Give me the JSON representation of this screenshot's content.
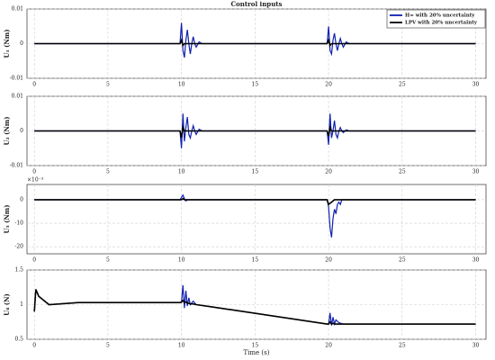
{
  "chart_data": [
    {
      "type": "line",
      "title": "Control inputs",
      "ylabel": "U₁ (Nm)",
      "legend": "upper right",
      "grid": true,
      "xlim": [
        -0.5,
        30.7
      ],
      "xticks": [
        0,
        5,
        10,
        15,
        20,
        25,
        30
      ],
      "ylim": [
        -0.01,
        0.01
      ],
      "yticks": [
        -0.01,
        0,
        0.01
      ],
      "x": [
        0,
        9.9,
        10,
        10.1,
        10.2,
        10.3,
        10.4,
        10.5,
        10.6,
        10.7,
        10.8,
        10.9,
        11,
        11.2,
        11.4,
        11.6,
        12,
        19.9,
        20,
        20.1,
        20.2,
        20.3,
        20.4,
        20.5,
        20.6,
        20.7,
        20.8,
        20.9,
        21,
        21.2,
        21.4,
        21.6,
        22,
        30
      ],
      "series": [
        {
          "name": "H∞ with 20% uncertainty",
          "color": "#1020b0",
          "values": [
            0,
            0,
            0.006,
            -0.002,
            -0.004,
            0.001,
            0.004,
            0,
            -0.003,
            0,
            0.002,
            0,
            -0.001,
            0.0005,
            0,
            0,
            0,
            0,
            0.005,
            -0.002,
            -0.003,
            0.001,
            0.003,
            0,
            -0.002,
            0,
            0.0015,
            0,
            -0.001,
            0.0005,
            0,
            0,
            0,
            0
          ]
        },
        {
          "name": "LPV with 20% uncertainty",
          "color": "#000000",
          "values": [
            0,
            0,
            0.001,
            -0.0005,
            0,
            0,
            0,
            0,
            0,
            0,
            0,
            0,
            0,
            0,
            0,
            0,
            0,
            0,
            0.001,
            -0.0005,
            0,
            0,
            0,
            0,
            0,
            0,
            0,
            0,
            0,
            0,
            0,
            0,
            0,
            0
          ]
        }
      ]
    },
    {
      "type": "line",
      "ylabel": "U₂ (Nm)",
      "grid": true,
      "xlim": [
        -0.5,
        30.7
      ],
      "xticks": [
        0,
        5,
        10,
        15,
        20,
        25,
        30
      ],
      "ylim": [
        -0.01,
        0.01
      ],
      "yticks": [
        -0.01,
        0,
        0.01
      ],
      "x": [
        0,
        9.9,
        10,
        10.1,
        10.2,
        10.3,
        10.4,
        10.5,
        10.6,
        10.7,
        10.8,
        10.9,
        11,
        11.2,
        11.4,
        11.6,
        12,
        19.9,
        20,
        20.1,
        20.2,
        20.3,
        20.4,
        20.5,
        20.6,
        20.7,
        20.8,
        20.9,
        21,
        21.2,
        21.4,
        21.6,
        22,
        30
      ],
      "series": [
        {
          "color": "#1020b0",
          "values": [
            0,
            0,
            -0.005,
            0.005,
            -0.003,
            0.001,
            0.004,
            -0.001,
            -0.002,
            0,
            0.0015,
            0,
            -0.001,
            0.0005,
            0,
            0,
            0,
            0,
            -0.004,
            0.005,
            -0.002,
            0,
            0.003,
            -0.001,
            -0.002,
            0,
            0.001,
            0,
            -0.0005,
            0.0003,
            0,
            0,
            0,
            0
          ]
        },
        {
          "color": "#000000",
          "values": [
            0,
            0,
            -0.002,
            0.001,
            0,
            0,
            0,
            0,
            0,
            0,
            0,
            0,
            0,
            0,
            0,
            0,
            0,
            0,
            -0.0015,
            0.001,
            0,
            0,
            0,
            0,
            0,
            0,
            0,
            0,
            0,
            0,
            0,
            0,
            0,
            0
          ]
        }
      ]
    },
    {
      "type": "line",
      "ylabel": "U₃ (Nm)",
      "multiplier": "×10⁻³",
      "grid": true,
      "xlim": [
        -0.5,
        30.7
      ],
      "xticks": [
        0,
        5,
        10,
        15,
        20,
        25,
        30
      ],
      "ylim": [
        -23,
        6.5
      ],
      "yticks": [
        -20,
        -10,
        0
      ],
      "x": [
        0,
        9.9,
        10,
        10.1,
        10.2,
        10.3,
        10.4,
        10.5,
        10.6,
        10.7,
        10.8,
        10.9,
        11,
        11.2,
        11.4,
        11.6,
        12,
        19.9,
        20,
        20.1,
        20.2,
        20.3,
        20.4,
        20.5,
        20.6,
        20.7,
        20.8,
        20.9,
        21,
        21.2,
        21.4,
        21.6,
        22,
        30
      ],
      "series": [
        {
          "color": "#1020b0",
          "values": [
            0,
            0,
            1,
            2,
            0.5,
            -0.5,
            0,
            0,
            0,
            0,
            0,
            0,
            0,
            0,
            0,
            0,
            0,
            0,
            -3,
            -12,
            -16,
            -8,
            -4,
            -6,
            -2,
            -1,
            -2,
            0,
            0,
            0,
            0,
            0,
            0,
            0
          ]
        },
        {
          "color": "#000000",
          "values": [
            0,
            0,
            0,
            0.5,
            0,
            0,
            0,
            0,
            0,
            0,
            0,
            0,
            0,
            0,
            0,
            0,
            0,
            0,
            -2,
            -1.5,
            -1,
            -0.5,
            0,
            0,
            0,
            0,
            0,
            0,
            0,
            0,
            0,
            0,
            0,
            0
          ]
        }
      ]
    },
    {
      "type": "line",
      "ylabel": "U₄ (N)",
      "xlabel": "Time (s)",
      "grid": true,
      "xlim": [
        -0.5,
        30.7
      ],
      "xticks": [
        0,
        5,
        10,
        15,
        20,
        25,
        30
      ],
      "ylim": [
        0.5,
        1.5
      ],
      "yticks": [
        0.5,
        1,
        1.5
      ],
      "x": [
        0,
        0.1,
        0.3,
        1,
        3,
        9.9,
        10,
        10.1,
        10.2,
        10.3,
        10.4,
        10.5,
        10.6,
        10.8,
        11,
        12,
        19.9,
        20,
        20.1,
        20.2,
        20.3,
        20.4,
        20.5,
        20.7,
        21,
        22,
        30
      ],
      "series": [
        {
          "color": "#1020b0",
          "values": [
            0.9,
            1.22,
            1.12,
            1.0,
            1.03,
            1.03,
            1.03,
            1.28,
            0.95,
            1.2,
            0.98,
            1.1,
            1.0,
            1.05,
            1.0,
            0.97,
            0.72,
            0.72,
            0.88,
            0.7,
            0.82,
            0.72,
            0.78,
            0.74,
            0.72,
            0.72,
            0.72
          ]
        },
        {
          "color": "#000000",
          "values": [
            0.9,
            1.22,
            1.12,
            1.0,
            1.03,
            1.03,
            1.04,
            1.06,
            1.03,
            1.04,
            1.02,
            1.02,
            1.01,
            1.01,
            1.0,
            0.97,
            0.72,
            0.72,
            0.75,
            0.72,
            0.73,
            0.72,
            0.72,
            0.72,
            0.72,
            0.72,
            0.72
          ]
        }
      ]
    }
  ]
}
